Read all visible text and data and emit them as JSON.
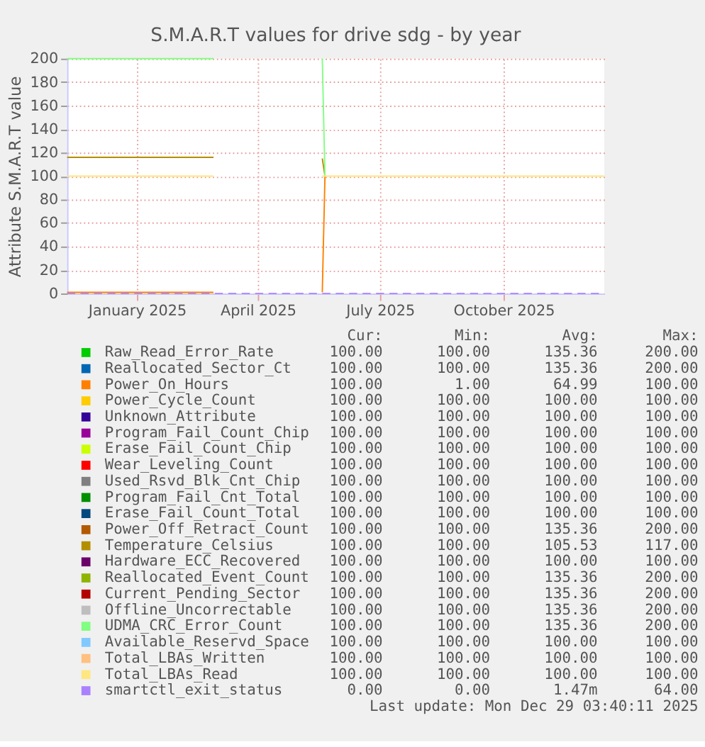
{
  "chart_data": {
    "type": "line",
    "title": "S.M.A.R.T values for drive sdg - by year",
    "ylabel": "Attribute S.M.A.R.T value",
    "x": [
      "2024-11-24",
      "2025-03-13",
      "2025-04-20",
      "2025-06-02",
      "2025-06-04",
      "2025-12-29"
    ],
    "xlim": [
      "2024-11-24",
      "2025-12-29"
    ],
    "xticks": [
      {
        "value": "2025-01-15",
        "label": "January 2025"
      },
      {
        "value": "2025-04-15",
        "label": "April 2025"
      },
      {
        "value": "2025-07-15",
        "label": "July 2025"
      },
      {
        "value": "2025-10-15",
        "label": "October 2025"
      }
    ],
    "ylim": [
      0,
      200
    ],
    "yticks": [
      0,
      20,
      40,
      60,
      80,
      100,
      120,
      140,
      160,
      180,
      200
    ],
    "grid": true,
    "legend": "bottom",
    "line_style": "solid",
    "marker": "none",
    "series": [
      {
        "name": "Raw_Read_Error_Rate",
        "color": "#00cc00",
        "values": [
          null,
          null,
          null,
          null,
          null,
          null
        ]
      },
      {
        "name": "Reallocated_Sector_Ct",
        "color": "#0066b3",
        "values": [
          null,
          null,
          null,
          null,
          null,
          null
        ]
      },
      {
        "name": "Power_On_Hours",
        "color": "#ff8000",
        "values": [
          1,
          1,
          null,
          1,
          100,
          null
        ]
      },
      {
        "name": "Power_Cycle_Count",
        "color": "#ffcc00",
        "values": [
          null,
          null,
          null,
          null,
          null,
          null
        ]
      },
      {
        "name": "Unknown_Attribute",
        "color": "#330099",
        "values": [
          null,
          null,
          null,
          null,
          null,
          null
        ]
      },
      {
        "name": "Program_Fail_Count_Chip",
        "color": "#990099",
        "values": [
          null,
          null,
          null,
          null,
          null,
          null
        ]
      },
      {
        "name": "Erase_Fail_Count_Chip",
        "color": "#ccff00",
        "values": [
          null,
          null,
          null,
          null,
          null,
          null
        ]
      },
      {
        "name": "Wear_Leveling_Count",
        "color": "#ff0000",
        "values": [
          null,
          null,
          null,
          null,
          null,
          null
        ]
      },
      {
        "name": "Used_Rsvd_Blk_Cnt_Chip",
        "color": "#808080",
        "values": [
          null,
          null,
          null,
          null,
          null,
          null
        ]
      },
      {
        "name": "Program_Fail_Cnt_Total",
        "color": "#008f00",
        "values": [
          null,
          null,
          null,
          null,
          null,
          null
        ]
      },
      {
        "name": "Erase_Fail_Count_Total",
        "color": "#00487d",
        "values": [
          null,
          null,
          null,
          null,
          null,
          null
        ]
      },
      {
        "name": "Power_Off_Retract_Count",
        "color": "#b35a00",
        "values": [
          null,
          null,
          null,
          null,
          null,
          null
        ]
      },
      {
        "name": "Temperature_Celsius",
        "color": "#b38f00",
        "values": [
          116,
          116,
          null,
          115,
          100,
          null
        ]
      },
      {
        "name": "Hardware_ECC_Recovered",
        "color": "#6b006b",
        "values": [
          null,
          null,
          null,
          null,
          null,
          null
        ]
      },
      {
        "name": "Reallocated_Event_Count",
        "color": "#8fb300",
        "values": [
          null,
          null,
          null,
          null,
          null,
          null
        ]
      },
      {
        "name": "Current_Pending_Sector",
        "color": "#b30000",
        "values": [
          null,
          null,
          null,
          null,
          null,
          null
        ]
      },
      {
        "name": "Offline_Uncorrectable",
        "color": "#bebebe",
        "values": [
          null,
          null,
          null,
          null,
          null,
          null
        ]
      },
      {
        "name": "UDMA_CRC_Error_Count",
        "color": "#80ff80",
        "values": [
          200,
          200,
          null,
          200,
          100,
          null
        ]
      },
      {
        "name": "Available_Reservd_Space",
        "color": "#80c9ff",
        "values": [
          null,
          null,
          null,
          null,
          null,
          null
        ]
      },
      {
        "name": "Total_LBAs_Written",
        "color": "#ffc080",
        "values": [
          null,
          null,
          null,
          null,
          null,
          null
        ]
      },
      {
        "name": "Total_LBAs_Read",
        "color": "#ffe680",
        "values": [
          100,
          100,
          null,
          100,
          100,
          100
        ]
      },
      {
        "name": "smartctl_exit_status",
        "color": "#aa80ff",
        "line_style": "dashed",
        "values": [
          0,
          0,
          0,
          0,
          0,
          0
        ]
      }
    ],
    "annotations": [
      "Cur:",
      "Min:",
      "Avg:",
      "Max:",
      "100.00",
      "100.00",
      "135.36",
      "200.00",
      "100.00",
      "100.00",
      "135.36",
      "200.00",
      "100.00",
      "1.00",
      "64.99",
      "100.00",
      "100.00",
      "100.00",
      "100.00",
      "100.00",
      "100.00",
      "100.00",
      "100.00",
      "100.00",
      "100.00",
      "100.00",
      "100.00",
      "100.00",
      "100.00",
      "100.00",
      "100.00",
      "100.00",
      "100.00",
      "100.00",
      "100.00",
      "100.00",
      "100.00",
      "100.00",
      "100.00",
      "100.00",
      "100.00",
      "100.00",
      "100.00",
      "100.00",
      "100.00",
      "100.00",
      "100.00",
      "100.00",
      "100.00",
      "100.00",
      "135.36",
      "200.00",
      "100.00",
      "100.00",
      "105.53",
      "117.00",
      "100.00",
      "100.00",
      "100.00",
      "100.00",
      "100.00",
      "100.00",
      "135.36",
      "200.00",
      "100.00",
      "100.00",
      "135.36",
      "200.00",
      "100.00",
      "100.00",
      "135.36",
      "200.00",
      "100.00",
      "100.00",
      "135.36",
      "200.00",
      "100.00",
      "100.00",
      "100.00",
      "100.00",
      "100.00",
      "100.00",
      "100.00",
      "100.00",
      "100.00",
      "100.00",
      "100.00",
      "100.00",
      "0.00",
      "0.00",
      "1.47m",
      "64.00",
      "Last update: Mon Dec 29 03:40:11 2025"
    ]
  }
}
